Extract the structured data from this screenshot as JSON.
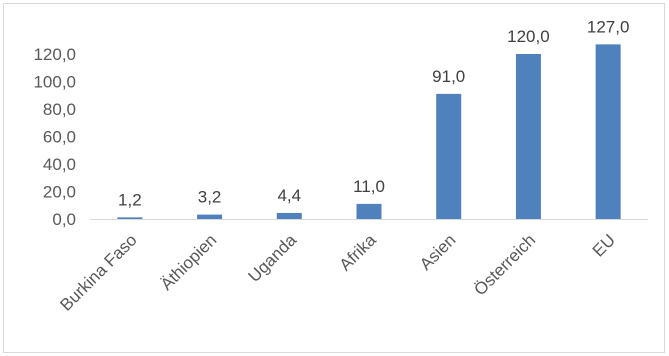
{
  "chart_data": {
    "type": "bar",
    "categories": [
      "Burkina Faso",
      "Äthiopien",
      "Uganda",
      "Afrika",
      "Asien",
      "Österreich",
      "EU"
    ],
    "values": [
      1.2,
      3.2,
      4.4,
      11.0,
      91.0,
      120.0,
      127.0
    ],
    "data_labels": [
      "1,2",
      "3,2",
      "4,4",
      "11,0",
      "91,0",
      "120,0",
      "127,0"
    ],
    "y_ticks": [
      0,
      20,
      40,
      60,
      80,
      100,
      120
    ],
    "y_tick_labels": [
      "0,0",
      "20,0",
      "40,0",
      "60,0",
      "80,0",
      "100,0",
      "120,0"
    ],
    "ylim": [
      0,
      130
    ],
    "bar_color": "#4f81bd",
    "axis_color": "#d9d9d9",
    "grid": false,
    "legend": "none",
    "title": "",
    "xlabel": "",
    "ylabel": ""
  }
}
